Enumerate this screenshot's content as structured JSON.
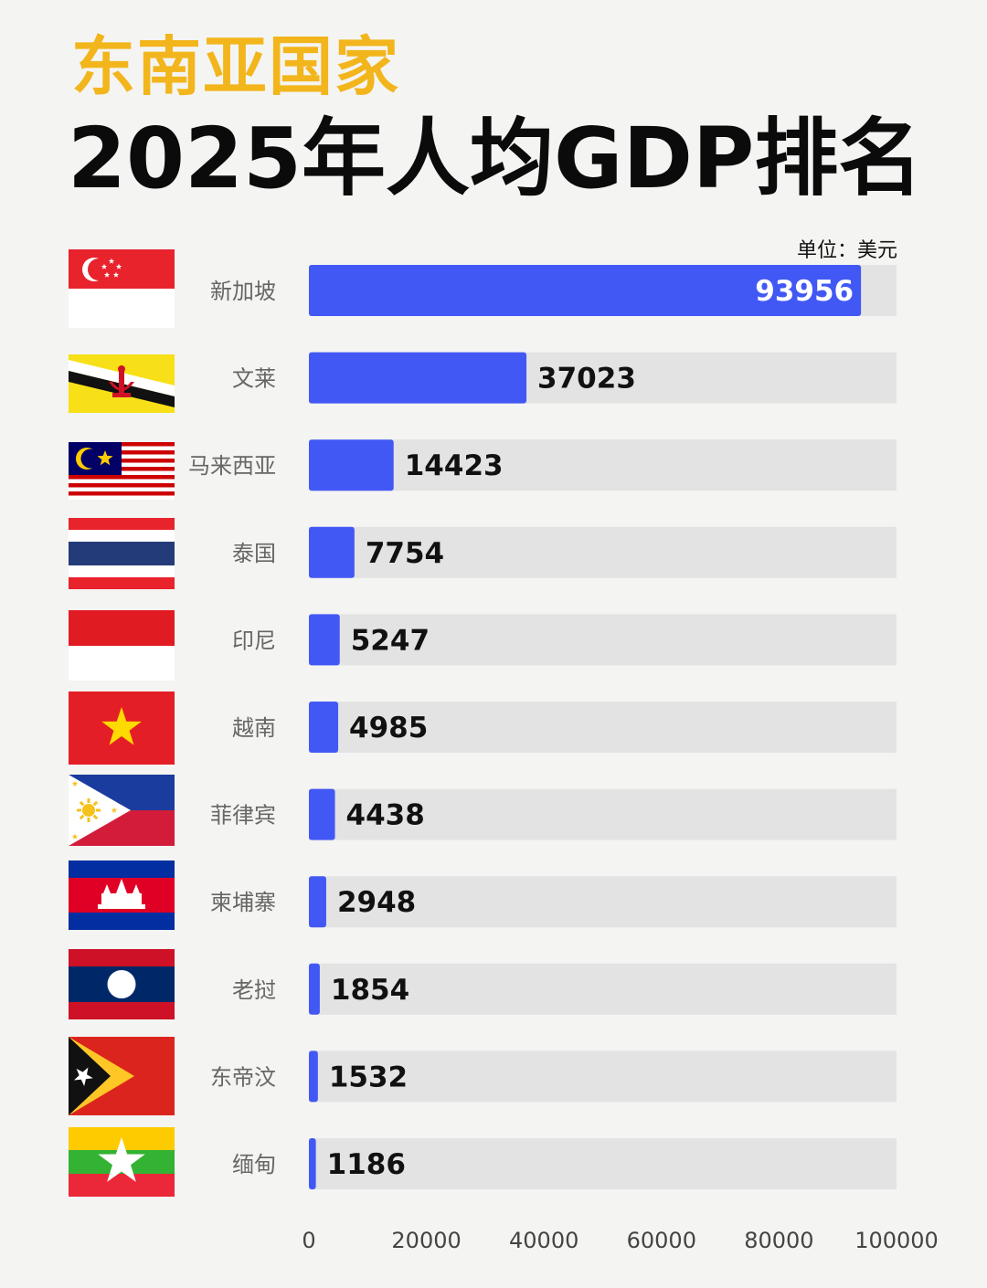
{
  "header": {
    "title_line1": "东南亚国家",
    "title_line2": "2025年人均GDP排名",
    "unit": "单位：美元"
  },
  "colors": {
    "bar": "#4258f5",
    "track": "#e3e3e3",
    "title_accent": "#f2b51c"
  },
  "chart_data": {
    "type": "bar",
    "orientation": "horizontal",
    "categories": [
      "新加坡",
      "文莱",
      "马来西亚",
      "泰国",
      "印尼",
      "越南",
      "菲律宾",
      "柬埔寨",
      "老挝",
      "东帝汶",
      "缅甸"
    ],
    "flags": [
      "flag-singapore-icon",
      "flag-brunei-icon",
      "flag-malaysia-icon",
      "flag-thailand-icon",
      "flag-indonesia-icon",
      "flag-vietnam-icon",
      "flag-philippines-icon",
      "flag-cambodia-icon",
      "flag-laos-icon",
      "flag-timor-leste-icon",
      "flag-myanmar-icon"
    ],
    "values": [
      93956,
      37023,
      14423,
      7754,
      5247,
      4985,
      4438,
      2948,
      1854,
      1532,
      1186
    ],
    "xlim": [
      0,
      100000
    ],
    "xticks": [
      "0",
      "20000",
      "40000",
      "60000",
      "80000",
      "100000"
    ],
    "grid": false
  }
}
